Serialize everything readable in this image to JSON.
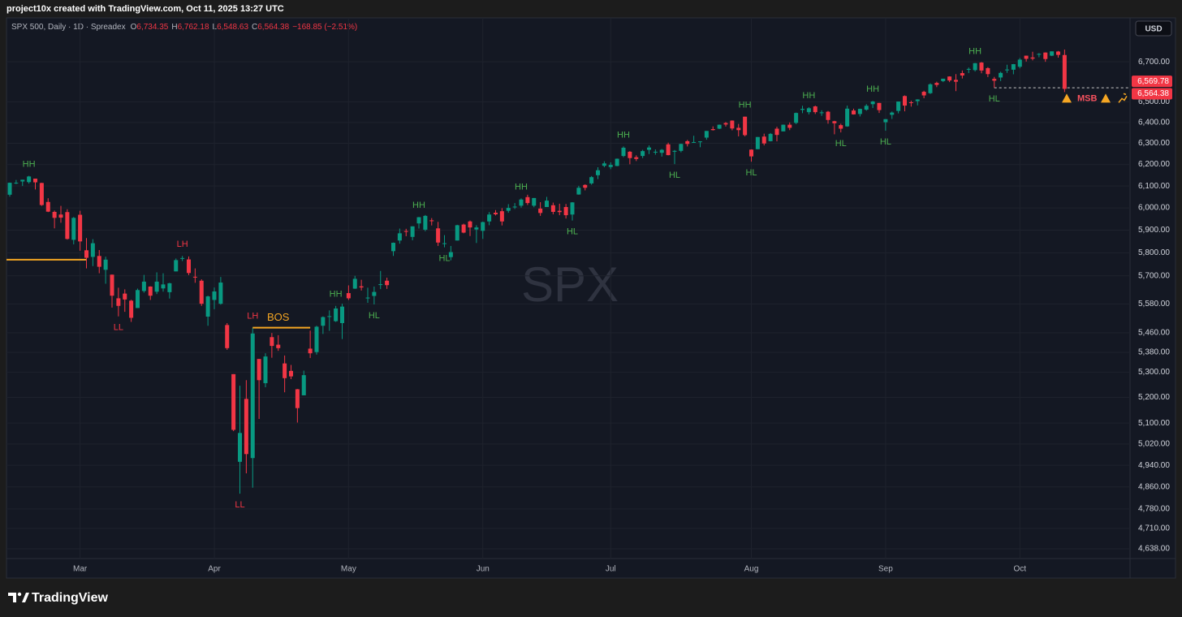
{
  "credit": "project10x created with TradingView.com, Oct 11, 2025 13:27 UTC",
  "brand": "TradingView",
  "currency": "USD",
  "watermark": "SPX",
  "header": {
    "symbol": "SPX 500, Daily · 1D · Spreadex",
    "o_label": "O",
    "o": "6,734.35",
    "h_label": "H",
    "h": "6,762.18",
    "l_label": "L",
    "l": "6,548.63",
    "c_label": "C",
    "c": "6,564.38",
    "change": "−168.85 (−2.51%)"
  },
  "chart_data": {
    "type": "candlestick",
    "log_scale": true,
    "grid": true,
    "colors": {
      "up": "#089981",
      "down": "#f23645",
      "structure": "#f5a623",
      "msb": "#f7525f"
    },
    "ylim": [
      4604,
      6850
    ],
    "yticks": [
      {
        "value": 4638,
        "label": "4,638.00"
      },
      {
        "value": 4710,
        "label": "4,710.00"
      },
      {
        "value": 4780,
        "label": "4,780.00"
      },
      {
        "value": 4860,
        "label": "4,860.00"
      },
      {
        "value": 4940,
        "label": "4,940.00"
      },
      {
        "value": 5020,
        "label": "5,020.00"
      },
      {
        "value": 5100,
        "label": "5,100.00"
      },
      {
        "value": 5200,
        "label": "5,200.00"
      },
      {
        "value": 5300,
        "label": "5,300.00"
      },
      {
        "value": 5380,
        "label": "5,380.00"
      },
      {
        "value": 5460,
        "label": "5,460.00"
      },
      {
        "value": 5580,
        "label": "5,580.00"
      },
      {
        "value": 5700,
        "label": "5,700.00"
      },
      {
        "value": 5800,
        "label": "5,800.00"
      },
      {
        "value": 5900,
        "label": "5,900.00"
      },
      {
        "value": 6000,
        "label": "6,000.00"
      },
      {
        "value": 6100,
        "label": "6,100.00"
      },
      {
        "value": 6200,
        "label": "6,200.00"
      },
      {
        "value": 6300,
        "label": "6,300.00"
      },
      {
        "value": 6400,
        "label": "6,400.00"
      },
      {
        "value": 6500,
        "label": "6,500.00"
      },
      {
        "value": 6700,
        "label": "6,700.00"
      }
    ],
    "categories": [
      null,
      null,
      null,
      null,
      null,
      null,
      null,
      null,
      null,
      null,
      null,
      "Mar",
      null,
      null,
      null,
      null,
      null,
      null,
      null,
      null,
      null,
      null,
      null,
      null,
      null,
      null,
      null,
      null,
      null,
      null,
      null,
      null,
      "Apr",
      null,
      null,
      null,
      null,
      null,
      null,
      null,
      null,
      null,
      null,
      null,
      null,
      null,
      null,
      null,
      null,
      null,
      null,
      null,
      null,
      "May",
      null,
      null,
      null,
      null,
      null,
      null,
      null,
      null,
      null,
      null,
      null,
      null,
      null,
      null,
      null,
      null,
      null,
      null,
      null,
      null,
      "Jun",
      null,
      null,
      null,
      null,
      null,
      null,
      null,
      null,
      null,
      null,
      null,
      null,
      null,
      null,
      null,
      null,
      null,
      null,
      null,
      "Jul",
      null,
      null,
      null,
      null,
      null,
      null,
      null,
      null,
      null,
      null,
      null,
      null,
      null,
      null,
      null,
      null,
      null,
      null,
      null,
      null,
      null,
      "Aug",
      null,
      null,
      null,
      null,
      null,
      null,
      null,
      null,
      null,
      null,
      null,
      null,
      null,
      null,
      null,
      null,
      null,
      null,
      null,
      null,
      "Sep",
      null,
      null,
      null,
      null,
      null,
      null,
      null,
      null,
      null,
      null,
      null,
      null,
      null,
      null,
      null,
      null,
      null,
      null,
      null,
      null,
      "Oct",
      null,
      null,
      null,
      null,
      null,
      null,
      null
    ],
    "ohlc": [
      [
        6060,
        6116,
        6051,
        6115
      ],
      [
        6115,
        6128,
        6109,
        6115
      ],
      [
        6121,
        6129,
        6100,
        6129
      ],
      [
        6118,
        6147,
        6111,
        6144
      ],
      [
        6134,
        6134,
        6084,
        6117
      ],
      [
        6114,
        6115,
        6009,
        6013
      ],
      [
        6027,
        6044,
        5981,
        5983
      ],
      [
        5982,
        5988,
        5908,
        5955
      ],
      [
        5970,
        6009,
        5933,
        5956
      ],
      [
        5981,
        5994,
        5858,
        5861
      ],
      [
        5857,
        5959,
        5837,
        5955
      ],
      [
        5969,
        5987,
        5809,
        5850
      ],
      [
        5811,
        5865,
        5732,
        5778
      ],
      [
        5782,
        5860,
        5742,
        5842
      ],
      [
        5786,
        5812,
        5711,
        5739
      ],
      [
        5726,
        5783,
        5666,
        5770
      ],
      [
        5705,
        5705,
        5565,
        5615
      ],
      [
        5604,
        5649,
        5528,
        5572
      ],
      [
        5624,
        5642,
        5547,
        5599
      ],
      [
        5594,
        5598,
        5505,
        5522
      ],
      [
        5563,
        5645,
        5563,
        5639
      ],
      [
        5635,
        5704,
        5628,
        5675
      ],
      [
        5654,
        5655,
        5597,
        5615
      ],
      [
        5632,
        5715,
        5622,
        5675
      ],
      [
        5646,
        5711,
        5632,
        5663
      ],
      [
        5630,
        5670,
        5603,
        5668
      ],
      [
        5719,
        5775,
        5719,
        5768
      ],
      [
        5775,
        5786,
        5764,
        5777
      ],
      [
        5771,
        5784,
        5703,
        5712
      ],
      [
        5696,
        5732,
        5670,
        5693
      ],
      [
        5679,
        5685,
        5572,
        5581
      ],
      [
        5527,
        5615,
        5489,
        5612
      ],
      [
        5597,
        5650,
        5558,
        5633
      ],
      [
        5581,
        5695,
        5577,
        5671
      ],
      [
        5492,
        5500,
        5390,
        5397
      ],
      [
        5292,
        5292,
        5069,
        5074
      ],
      [
        4953,
        5246,
        4835,
        5062
      ],
      [
        5194,
        5268,
        4910,
        4982
      ],
      [
        4967,
        5481,
        4857,
        5457
      ],
      [
        5353,
        5353,
        5116,
        5268
      ],
      [
        5256,
        5376,
        5240,
        5363
      ],
      [
        5442,
        5459,
        5358,
        5406
      ],
      [
        5411,
        5450,
        5386,
        5397
      ],
      [
        5335,
        5367,
        5220,
        5276
      ],
      [
        5305,
        5329,
        5272,
        5283
      ],
      [
        5232,
        5233,
        5102,
        5158
      ],
      [
        5208,
        5306,
        5208,
        5288
      ],
      [
        5395,
        5469,
        5357,
        5376
      ],
      [
        5381,
        5489,
        5371,
        5485
      ],
      [
        5489,
        5528,
        5455,
        5525
      ],
      [
        5529,
        5553,
        5468,
        5529
      ],
      [
        5508,
        5572,
        5505,
        5561
      ],
      [
        5500,
        5581,
        5434,
        5569
      ],
      [
        5626,
        5659,
        5597,
        5604
      ],
      [
        5645,
        5700,
        5644,
        5687
      ],
      [
        5655,
        5683,
        5637,
        5650
      ],
      [
        5605,
        5649,
        5585,
        5607
      ],
      [
        5614,
        5654,
        5578,
        5631
      ],
      [
        5663,
        5721,
        5643,
        5664
      ],
      [
        5679,
        5692,
        5644,
        5660
      ],
      [
        5807,
        5845,
        5786,
        5844
      ],
      [
        5854,
        5907,
        5840,
        5886
      ],
      [
        5896,
        5906,
        5873,
        5893
      ],
      [
        5870,
        5917,
        5855,
        5917
      ],
      [
        5930,
        5959,
        5907,
        5958
      ],
      [
        5902,
        5968,
        5895,
        5964
      ],
      [
        5944,
        5954,
        5921,
        5940
      ],
      [
        5908,
        5937,
        5830,
        5845
      ],
      [
        5842,
        5878,
        5824,
        5842
      ],
      [
        5781,
        5830,
        5767,
        5803
      ],
      [
        5854,
        5924,
        5854,
        5922
      ],
      [
        5925,
        5929,
        5886,
        5889
      ],
      [
        5939,
        5943,
        5874,
        5912
      ],
      [
        5903,
        5922,
        5843,
        5912
      ],
      [
        5897,
        5938,
        5861,
        5936
      ],
      [
        5939,
        5981,
        5922,
        5970
      ],
      [
        5978,
        5990,
        5966,
        5971
      ],
      [
        5985,
        5999,
        5921,
        5939
      ],
      [
        5987,
        6017,
        5978,
        6000
      ],
      [
        6004,
        6022,
        5995,
        6006
      ],
      [
        6010,
        6043,
        6001,
        6038
      ],
      [
        6049,
        6060,
        6013,
        6022
      ],
      [
        6010,
        6045,
        6003,
        6045
      ],
      [
        5997,
        6026,
        5964,
        5977
      ],
      [
        6004,
        6050,
        6004,
        6033
      ],
      [
        6012,
        6024,
        5971,
        5982
      ],
      [
        5987,
        6019,
        5967,
        5981
      ],
      [
        6004,
        6018,
        5952,
        5967
      ],
      [
        5970,
        6026,
        5943,
        6025
      ],
      [
        6061,
        6101,
        6060,
        6092
      ],
      [
        6105,
        6108,
        6080,
        6092
      ],
      [
        6112,
        6146,
        6106,
        6141
      ],
      [
        6150,
        6187,
        6132,
        6173
      ],
      [
        6194,
        6215,
        6187,
        6205
      ],
      [
        6188,
        6210,
        6178,
        6198
      ],
      [
        6193,
        6228,
        6192,
        6227
      ],
      [
        6240,
        6285,
        6234,
        6279
      ],
      [
        6260,
        6263,
        6201,
        6230
      ],
      [
        6234,
        6243,
        6216,
        6226
      ],
      [
        6240,
        6269,
        6230,
        6263
      ],
      [
        6269,
        6290,
        6249,
        6280
      ],
      [
        6256,
        6271,
        6246,
        6260
      ],
      [
        6255,
        6273,
        6237,
        6269
      ],
      [
        6295,
        6303,
        6243,
        6244
      ],
      [
        6260,
        6268,
        6202,
        6264
      ],
      [
        6264,
        6298,
        6257,
        6297
      ],
      [
        6310,
        6316,
        6285,
        6297
      ],
      [
        6305,
        6336,
        6303,
        6306
      ],
      [
        6306,
        6310,
        6281,
        6309
      ],
      [
        6327,
        6359,
        6317,
        6359
      ],
      [
        6368,
        6381,
        6361,
        6363
      ],
      [
        6370,
        6390,
        6368,
        6389
      ],
      [
        6397,
        6402,
        6380,
        6390
      ],
      [
        6409,
        6410,
        6362,
        6371
      ],
      [
        6374,
        6393,
        6333,
        6363
      ],
      [
        6428,
        6428,
        6333,
        6339
      ],
      [
        6270,
        6271,
        6213,
        6238
      ],
      [
        6272,
        6330,
        6272,
        6330
      ],
      [
        6332,
        6346,
        6290,
        6299
      ],
      [
        6310,
        6349,
        6309,
        6345
      ],
      [
        6370,
        6379,
        6309,
        6340
      ],
      [
        6357,
        6390,
        6357,
        6389
      ],
      [
        6389,
        6400,
        6363,
        6374
      ],
      [
        6398,
        6448,
        6392,
        6446
      ],
      [
        6461,
        6481,
        6445,
        6466
      ],
      [
        6450,
        6474,
        6439,
        6469
      ],
      [
        6478,
        6482,
        6441,
        6450
      ],
      [
        6445,
        6459,
        6432,
        6449
      ],
      [
        6452,
        6456,
        6394,
        6412
      ],
      [
        6406,
        6408,
        6343,
        6396
      ],
      [
        6387,
        6394,
        6352,
        6370
      ],
      [
        6381,
        6482,
        6379,
        6467
      ],
      [
        6458,
        6467,
        6438,
        6439
      ],
      [
        6441,
        6467,
        6429,
        6466
      ],
      [
        6462,
        6489,
        6457,
        6481
      ],
      [
        6489,
        6505,
        6470,
        6502
      ],
      [
        6495,
        6495,
        6446,
        6460
      ],
      [
        6401,
        6416,
        6360,
        6416
      ],
      [
        6437,
        6453,
        6417,
        6448
      ],
      [
        6456,
        6502,
        6444,
        6502
      ],
      [
        6529,
        6532,
        6454,
        6482
      ],
      [
        6498,
        6506,
        6477,
        6495
      ],
      [
        6504,
        6513,
        6483,
        6512
      ],
      [
        6550,
        6555,
        6518,
        6532
      ],
      [
        6543,
        6592,
        6539,
        6587
      ],
      [
        6594,
        6600,
        6573,
        6584
      ],
      [
        6603,
        6615,
        6598,
        6615
      ],
      [
        6626,
        6627,
        6598,
        6606
      ],
      [
        6609,
        6638,
        6553,
        6600
      ],
      [
        6643,
        6656,
        6616,
        6631
      ],
      [
        6660,
        6671,
        6643,
        6664
      ],
      [
        6658,
        6694,
        6651,
        6693
      ],
      [
        6696,
        6699,
        6642,
        6656
      ],
      [
        6668,
        6673,
        6623,
        6638
      ],
      [
        6614,
        6624,
        6570,
        6605
      ],
      [
        6621,
        6650,
        6603,
        6644
      ],
      [
        6661,
        6685,
        6644,
        6661
      ],
      [
        6660,
        6689,
        6637,
        6688
      ],
      [
        6675,
        6719,
        6667,
        6711
      ],
      [
        6731,
        6731,
        6701,
        6715
      ],
      [
        6722,
        6751,
        6707,
        6716
      ],
      [
        6736,
        6744,
        6723,
        6740
      ],
      [
        6747,
        6748,
        6700,
        6714
      ],
      [
        6731,
        6753,
        6729,
        6753
      ],
      [
        6752,
        6755,
        6721,
        6735
      ],
      [
        6734.35,
        6762.18,
        6548.63,
        6564.38
      ]
    ],
    "annotations": [
      "HH",
      "LH",
      "LL",
      "LH",
      "LL",
      "HH",
      "HL",
      "HH",
      "HL",
      "HH",
      "HL",
      "HH",
      "HL",
      "HH",
      "HL",
      "HH",
      "HL",
      "HH",
      "HL",
      "HH",
      "HL"
    ],
    "bos_label": "BOS",
    "msb_label": "MSB",
    "levels": [
      5770
    ],
    "price_labels": [
      {
        "value": 6569.78,
        "label": "6,569.78"
      },
      {
        "value": 6564.38,
        "label": "6,564.38"
      }
    ]
  }
}
